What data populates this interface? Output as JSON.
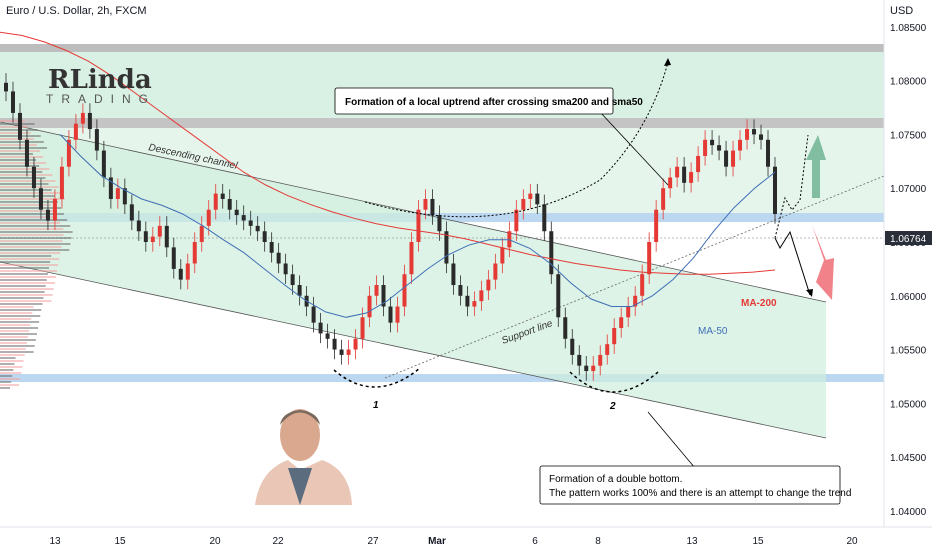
{
  "chart_data": {
    "type": "candlestick",
    "title": "Euro / U.S. Dollar, 2h, FXCM",
    "currency_label": "USD",
    "y_ticks": [
      1.04,
      1.045,
      1.05,
      1.055,
      1.06,
      1.065,
      1.07,
      1.075,
      1.08,
      1.085
    ],
    "y_tick_labels": [
      "1.04000",
      "1.04500",
      "1.05000",
      "1.05500",
      "1.06000",
      "1.06500",
      "1.07000",
      "1.07500",
      "1.08000",
      "1.08500"
    ],
    "ylim": [
      1.0385,
      1.0875
    ],
    "x_tick_labels": [
      "13",
      "15",
      "20",
      "22",
      "27",
      "Mar",
      "6",
      "8",
      "13",
      "15",
      "20"
    ],
    "current_price": 1.06764,
    "current_price_label": "1.06764",
    "ma_labels": {
      "ma200": "MA-200",
      "ma50": "MA-50"
    },
    "lines": {
      "descending_channel": "Descending channel",
      "support_line": "Support line"
    },
    "bottom_labels": [
      "1",
      "2"
    ],
    "colors": {
      "up": "#e53935",
      "down": "#2a2a2a",
      "ma200": "#e53935",
      "ma50": "#3f6fb5",
      "accent_blue": "#9ec6ee",
      "resistance": "#bdbdbd",
      "bg_green": "#d9f1e4"
    },
    "close_path": [
      1.079,
      1.077,
      1.0745,
      1.072,
      1.07,
      1.068,
      1.067,
      1.069,
      1.072,
      1.0745,
      1.076,
      1.077,
      1.0755,
      1.0735,
      1.071,
      1.069,
      1.07,
      1.0685,
      1.067,
      1.066,
      1.065,
      1.0655,
      1.0665,
      1.0645,
      1.0625,
      1.0615,
      1.063,
      1.065,
      1.0665,
      1.068,
      1.0695,
      1.069,
      1.068,
      1.0675,
      1.067,
      1.0665,
      1.066,
      1.065,
      1.064,
      1.063,
      1.062,
      1.061,
      1.06,
      1.059,
      1.0575,
      1.0565,
      1.056,
      1.055,
      1.0545,
      1.055,
      1.056,
      1.058,
      1.06,
      1.061,
      1.059,
      1.0575,
      1.059,
      1.062,
      1.065,
      1.068,
      1.069,
      1.0675,
      1.066,
      1.063,
      1.061,
      1.06,
      1.059,
      1.0595,
      1.0605,
      1.0615,
      1.063,
      1.0645,
      1.066,
      1.068,
      1.069,
      1.0695,
      1.0685,
      1.066,
      1.062,
      1.058,
      1.056,
      1.0545,
      1.0535,
      1.053,
      1.0535,
      1.0545,
      1.0555,
      1.057,
      1.058,
      1.059,
      1.06,
      1.062,
      1.065,
      1.068,
      1.07,
      1.071,
      1.072,
      1.0705,
      1.0715,
      1.073,
      1.0745,
      1.074,
      1.0735,
      1.072,
      1.0735,
      1.0745,
      1.0755,
      1.075,
      1.0745,
      1.072,
      1.0676
    ],
    "ma200_path": [
      1.0845,
      1.0842,
      1.0836,
      1.0828,
      1.0818,
      1.0805,
      1.079,
      1.0775,
      1.076,
      1.0745,
      1.073,
      1.0715,
      1.0703,
      1.0693,
      1.0685,
      1.0678,
      1.0672,
      1.0667,
      1.0663,
      1.066,
      1.0657,
      1.0653,
      1.0648,
      1.0643,
      1.0638,
      1.0634,
      1.063,
      1.0627,
      1.0624,
      1.0622,
      1.0621,
      1.062,
      1.062,
      1.0621,
      1.0622,
      1.0624
    ],
    "ma50_path": [
      1.075,
      1.073,
      1.0712,
      1.07,
      1.069,
      1.0684,
      1.0676,
      1.0665,
      1.0652,
      1.064,
      1.0625,
      1.061,
      1.0596,
      1.0585,
      1.058,
      1.0584,
      1.0595,
      1.061,
      1.0625,
      1.0638,
      1.0647,
      1.0652,
      1.0652,
      1.0644,
      1.063,
      1.0612,
      1.0597,
      1.059,
      1.059,
      1.06,
      1.0615,
      1.0635,
      1.066,
      1.0682,
      1.07,
      1.0715
    ],
    "annotations": [
      {
        "text": "Formation of a local uptrend after crossing sma200 and sma50"
      },
      {
        "text": "Formation of a double bottom.",
        "text2": "The pattern works 100% and there is an attempt to change the trend"
      }
    ],
    "watermark": {
      "main": "RLinda",
      "sub": "TRADING"
    }
  }
}
